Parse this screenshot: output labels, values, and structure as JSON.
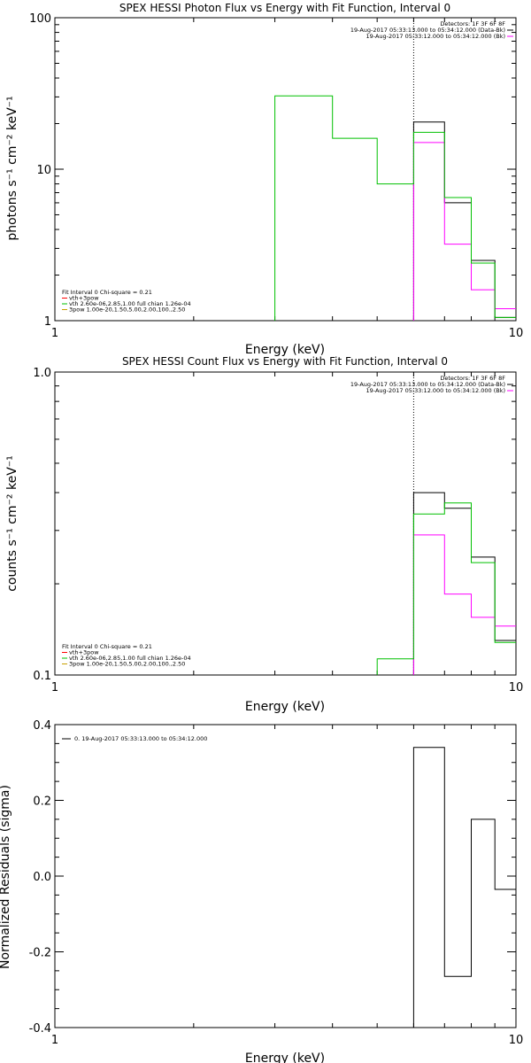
{
  "chart_data": [
    {
      "type": "line",
      "title": "SPEX HESSI Photon Flux vs Energy with Fit Function, Interval 0",
      "xlabel": "Energy (keV)",
      "ylabel": "photons s⁻¹ cm⁻² keV⁻¹",
      "xscale": "log",
      "yscale": "log",
      "xlim": [
        1,
        10
      ],
      "ylim": [
        1,
        100
      ],
      "xticks": [
        {
          "v": 1,
          "label": "1"
        },
        {
          "v": 10,
          "label": "10"
        }
      ],
      "yticks": [
        {
          "v": 1,
          "label": "1"
        },
        {
          "v": 10,
          "label": "10"
        },
        {
          "v": 100,
          "label": "100"
        }
      ],
      "vline": 6.0,
      "header_lines": [
        "Detectors: 1F 3F 6F 8F",
        "19-Aug-2017 05:33:13.000 to 05:34:12.000 (Data-Bk)",
        "19-Aug-2017 05:33:12.000 to 05:34:12.000 (Bk)"
      ],
      "legend_lines": [
        "Fit Interval 0   Chi-square = 0.21",
        "vth+3pow",
        "vth 2.60e-06,2.85,1.00  full chian 1.26e-04",
        "3pow 1.00e-20,1.50,5.00,2.00,100.,2.50"
      ],
      "legend_colors": [
        "#000000",
        "#ff0000",
        "#00c000",
        "#c8a000"
      ],
      "series": [
        {
          "color": "#000000",
          "edges": [
            6.0,
            7.0,
            8.0,
            9.0,
            10.0
          ],
          "values": [
            20.5,
            6.0,
            2.5,
            1.05
          ]
        },
        {
          "color": "#ff00ff",
          "edges": [
            6.0,
            7.0,
            8.0,
            9.0,
            10.0
          ],
          "values": [
            15.0,
            3.2,
            1.6,
            1.2
          ]
        },
        {
          "color": "#00c000",
          "edges": [
            3.0,
            4.0,
            5.0,
            6.0,
            7.0,
            8.0,
            9.0,
            10.0
          ],
          "values": [
            30.5,
            16.0,
            8.0,
            17.5,
            6.5,
            2.4,
            1.05
          ]
        }
      ]
    },
    {
      "type": "line",
      "title": "SPEX HESSI Count Flux vs Energy with Fit Function, Interval 0",
      "xlabel": "Energy (keV)",
      "ylabel": "counts s⁻¹ cm⁻² keV⁻¹",
      "xscale": "log",
      "yscale": "log",
      "xlim": [
        1,
        10
      ],
      "ylim": [
        0.1,
        1.0
      ],
      "xticks": [
        {
          "v": 1,
          "label": "1"
        },
        {
          "v": 10,
          "label": "10"
        }
      ],
      "yticks": [
        {
          "v": 0.1,
          "label": "0.1"
        },
        {
          "v": 1.0,
          "label": "1.0"
        }
      ],
      "vline": 6.0,
      "header_lines": [
        "Detectors: 1F 3F 6F 8F",
        "19-Aug-2017 05:33:13.000 to 05:34:12.000 (Data-Bk)",
        "19-Aug-2017 05:33:12.000 to 05:34:12.000 (Bk)"
      ],
      "legend_lines": [
        "Fit Interval 0   Chi-square = 0.21",
        "vth+3pow",
        "vth 2.60e-06,2.85,1.00  full chian 1.26e-04",
        "3pow 1.00e-20,1.50,5.00,2.00,100.,2.50"
      ],
      "legend_colors": [
        "#000000",
        "#ff0000",
        "#00c000",
        "#c8a000"
      ],
      "series": [
        {
          "color": "#000000",
          "edges": [
            6.0,
            7.0,
            8.0,
            9.0,
            10.0
          ],
          "values": [
            0.4,
            0.355,
            0.245,
            0.13
          ]
        },
        {
          "color": "#ff00ff",
          "edges": [
            6.0,
            7.0,
            8.0,
            9.0,
            10.0
          ],
          "values": [
            0.29,
            0.185,
            0.155,
            0.145
          ]
        },
        {
          "color": "#00c000",
          "edges": [
            5.0,
            6.0,
            7.0,
            8.0,
            9.0,
            10.0
          ],
          "values": [
            0.113,
            0.34,
            0.37,
            0.235,
            0.128
          ]
        }
      ]
    },
    {
      "type": "line",
      "title": "",
      "xlabel": "Energy (keV)",
      "ylabel": "Normalized Residuals (sigma)",
      "xscale": "log",
      "yscale": "linear",
      "xlim": [
        1,
        10
      ],
      "ylim": [
        -0.4,
        0.4
      ],
      "xticks": [
        {
          "v": 1,
          "label": "1"
        },
        {
          "v": 10,
          "label": "10"
        }
      ],
      "yticks": [
        {
          "v": 0.4,
          "label": "0.4"
        },
        {
          "v": 0.2,
          "label": "0.2"
        },
        {
          "v": 0.0,
          "label": "0.0"
        },
        {
          "v": -0.2,
          "label": "-0.2"
        },
        {
          "v": -0.4,
          "label": "-0.4"
        }
      ],
      "legend_lines": [
        "0. 19-Aug-2017 05:33:13.000 to 05:34:12.000"
      ],
      "legend_colors": [
        "#000000"
      ],
      "series": [
        {
          "color": "#000000",
          "edges": [
            6.0,
            7.0,
            8.0,
            9.0,
            10.0
          ],
          "values": [
            0.34,
            -0.265,
            0.15,
            -0.035
          ],
          "baseline": -0.4
        }
      ]
    }
  ]
}
